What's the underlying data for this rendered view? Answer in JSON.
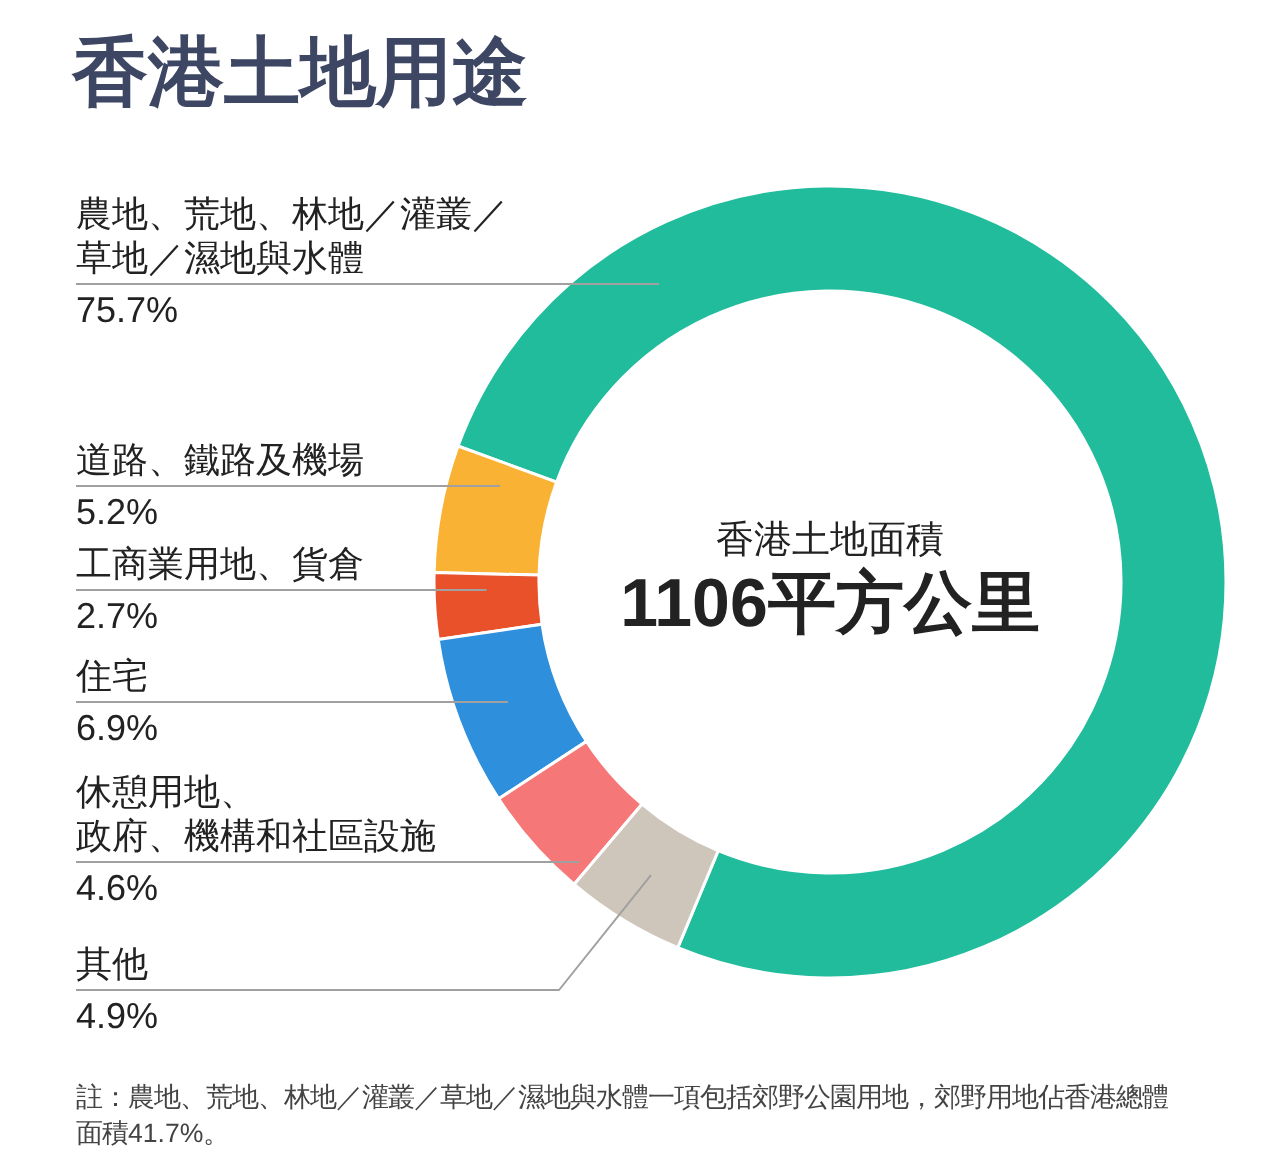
{
  "chart_data": {
    "type": "donut",
    "title": "香港土地用途",
    "categories": [
      "農地、荒地、林地／灌叢／草地／濕地與水體",
      "道路、鐵路及機場",
      "工商業用地、貨倉",
      "住宅",
      "休憩用地、政府、機構和社區設施",
      "其他"
    ],
    "values": [
      75.7,
      5.2,
      2.7,
      6.9,
      4.6,
      4.9
    ],
    "colors": [
      "#20bc9c",
      "#f9b234",
      "#e9512a",
      "#2e8fdc",
      "#f67777",
      "#cfc6bb"
    ],
    "value_labels": [
      "75.7%",
      "5.2%",
      "2.7%",
      "6.9%",
      "4.6%",
      "4.9%"
    ],
    "annotations": [
      "香港土地面積",
      "1106平方公里",
      "註：農地、荒地、林地／灌叢／草地／濕地與水體一項包括郊野公園用地，郊野用地佔香港總體面積41.7%。"
    ]
  }
}
